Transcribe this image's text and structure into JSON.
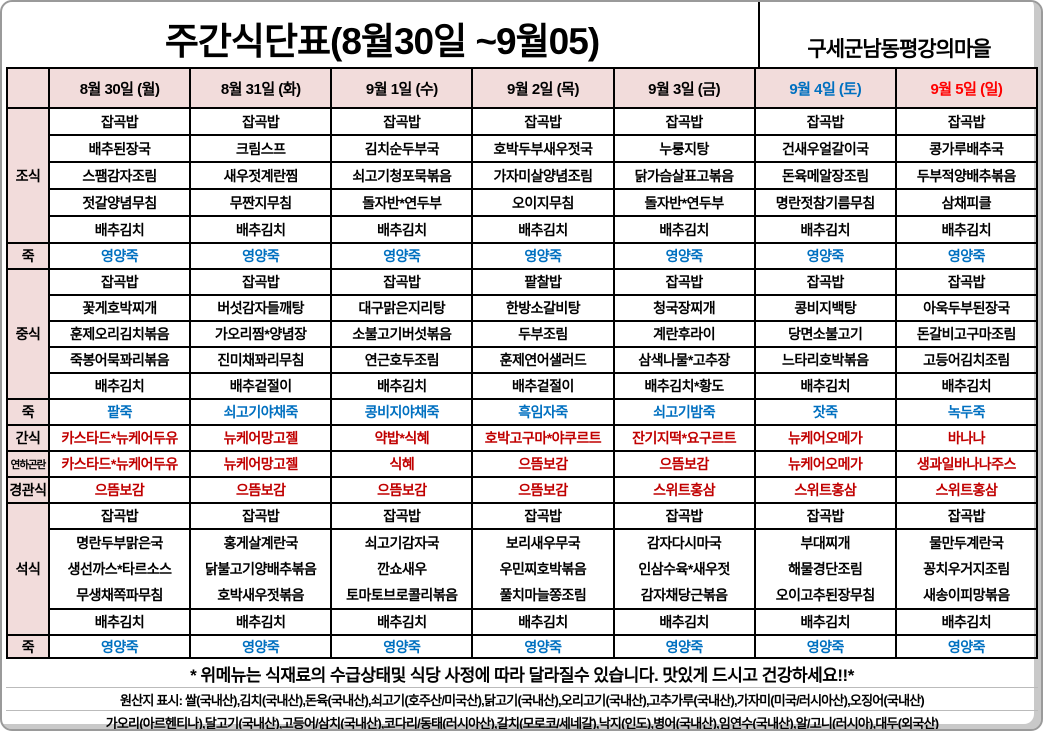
{
  "title": "주간식단표(8월30일 ~9월05)",
  "organization": "구세군남동평강의마을",
  "colors": {
    "header_bg": "#f2dcdb",
    "porridge_text": "#0070c0",
    "snack_text": "#c00000",
    "saturday_text": "#0070c0",
    "sunday_text": "#ff0000",
    "default_text": "#000000"
  },
  "days": [
    {
      "label": "8월 30일 (월)",
      "color": "#000000"
    },
    {
      "label": "8월 31일 (화)",
      "color": "#000000"
    },
    {
      "label": "9월 1일 (수)",
      "color": "#000000"
    },
    {
      "label": "9월 2일 (목)",
      "color": "#000000"
    },
    {
      "label": "9월 3일 (금)",
      "color": "#000000"
    },
    {
      "label": "9월 4일 (토)",
      "color": "#0070c0"
    },
    {
      "label": "9월 5일 (일)",
      "color": "#ff0000"
    }
  ],
  "sections": [
    {
      "id": "breakfast",
      "label": "조식",
      "color": "#000000",
      "row_class": "",
      "rows": [
        [
          "잡곡밥",
          "잡곡밥",
          "잡곡밥",
          "잡곡밥",
          "잡곡밥",
          "잡곡밥",
          "잡곡밥"
        ],
        [
          "배추된장국",
          "크림스프",
          "김치순두부국",
          "호박두부새우젓국",
          "누룽지탕",
          "건새우얼갈이국",
          "콩가루배추국"
        ],
        [
          "스팸감자조림",
          "새우젓계란찜",
          "쇠고기청포묵볶음",
          "가자미살양념조림",
          "닭가슴살표고볶음",
          "돈육메알장조림",
          "두부적양배추볶음"
        ],
        [
          "젓갈양념무침",
          "무짠지무침",
          "돌자반*연두부",
          "오이지무침",
          "돌자반*연두부",
          "명란젓참기름무침",
          "삼채피클"
        ],
        [
          "배추김치",
          "배추김치",
          "배추김치",
          "배추김치",
          "배추김치",
          "배추김치",
          "배추김치"
        ]
      ]
    },
    {
      "id": "porridge-breakfast",
      "label": "죽",
      "color": "#0070c0",
      "row_class": "compact",
      "rows": [
        [
          "영양죽",
          "영양죽",
          "영양죽",
          "영양죽",
          "영양죽",
          "영양죽",
          "영양죽"
        ]
      ]
    },
    {
      "id": "lunch",
      "label": "중식",
      "color": "#000000",
      "row_class": "compact",
      "rows": [
        [
          "잡곡밥",
          "잡곡밥",
          "잡곡밥",
          "팥찰밥",
          "잡곡밥",
          "잡곡밥",
          "잡곡밥"
        ],
        [
          "꽃게호박찌개",
          "버섯감자들깨탕",
          "대구맑은지리탕",
          "한방소갈비탕",
          "청국장찌개",
          "콩비지백탕",
          "아욱두부된장국"
        ],
        [
          "훈제오리김치볶음",
          "가오리찜*양념장",
          "소불고기버섯볶음",
          "두부조림",
          "계란후라이",
          "당면소불고기",
          "돈갈비고구마조림"
        ],
        [
          "죽봉어묵꽈리볶음",
          "진미채꽈리무침",
          "연근호두조림",
          "훈제연어샐러드",
          "삼색나물*고추장",
          "느타리호박볶음",
          "고등어김치조림"
        ],
        [
          "배추김치",
          "배추겉절이",
          "배추김치",
          "배추겉절이",
          "배추김치*황도",
          "배추김치",
          "배추김치"
        ]
      ]
    },
    {
      "id": "porridge-lunch",
      "label": "죽",
      "color": "#0070c0",
      "row_class": "compact",
      "rows": [
        [
          "팥죽",
          "쇠고기야채죽",
          "콩비지야채죽",
          "흑임자죽",
          "쇠고기밤죽",
          "잣죽",
          "녹두죽"
        ]
      ]
    },
    {
      "id": "snack",
      "label": "간식",
      "color": "#c00000",
      "row_class": "compact",
      "rows": [
        [
          "카스타드*뉴케어두유",
          "뉴케어망고젤",
          "약밥*식혜",
          "호박고구마*야쿠르트",
          "잔기지떡*요구르트",
          "뉴케어오메가",
          "바나나"
        ]
      ]
    },
    {
      "id": "dysphagia",
      "label": "연하곤란",
      "color": "#c00000",
      "row_class": "compact",
      "rows": [
        [
          "카스타드*뉴케어두유",
          "뉴케어망고젤",
          "식혜",
          "으뜸보감",
          "으뜸보감",
          "뉴케어오메가",
          "생과일바나나주스"
        ]
      ]
    },
    {
      "id": "tube-feeding",
      "label": "경관식",
      "color": "#c00000",
      "row_class": "compact",
      "rows": [
        [
          "으뜸보감",
          "으뜸보감",
          "으뜸보감",
          "으뜸보감",
          "스위트홍삼",
          "스위트홍삼",
          "스위트홍삼"
        ]
      ]
    },
    {
      "id": "dinner",
      "label": "석식",
      "color": "#000000",
      "row_class": "compact",
      "rows": [
        [
          "잡곡밥",
          "잡곡밥",
          "잡곡밥",
          "잡곡밥",
          "잡곡밥",
          "잡곡밥",
          "잡곡밥"
        ],
        [
          [
            "명란두부맑은국",
            "생선까스*타르소스",
            "무생채쪽파무침"
          ],
          [
            "홍게살계란국",
            "닭불고기양배추볶음",
            "호박새우젓볶음"
          ],
          [
            "쇠고기감자국",
            "깐쇼새우",
            "토마토브로콜리볶음"
          ],
          [
            "보리새우무국",
            "우민찌호박볶음",
            "풀치마늘쫑조림"
          ],
          [
            "감자다시마국",
            "인삼수육*새우젓",
            "감자채당근볶음"
          ],
          [
            "부대찌개",
            "해물경단조림",
            "오이고추된장무침"
          ],
          [
            "물만두계란국",
            "꽁치우거지조림",
            "새송이피망볶음"
          ]
        ],
        [
          "배추김치",
          "배추김치",
          "배추김치",
          "배추김치",
          "배추김치",
          "배추김치",
          "배추김치"
        ]
      ]
    },
    {
      "id": "porridge-dinner",
      "label": "죽",
      "color": "#0070c0",
      "row_class": "last-porridge",
      "rows": [
        [
          "영양죽",
          "영양죽",
          "영양죽",
          "영양죽",
          "영양죽",
          "영양죽",
          "영양죽"
        ]
      ]
    }
  ],
  "notes": {
    "line1": "* 위메뉴는 식재료의 수급상태및 식당 사정에 따라 달라질수 있습니다. 맛있게 드시고 건강하세요!!*",
    "line2": "원산지 표시: 쌀(국내산),김치(국내산),돈육(국내산),쇠고기(호주산/미국산),닭고기(국내산),오리고기(국내산),고추가루(국내산),가자미(미국/러시아산),오징어(국내산)",
    "line3": "가오리(아르헨티나),달고기(국내산),고등어/삼치(국내산),코다리/동태(러시아산),갈치(모로코/세네갈),낙지(인도),병어(국내산),임연수(국내산),알/고니(러시아),대두(외국산)"
  }
}
